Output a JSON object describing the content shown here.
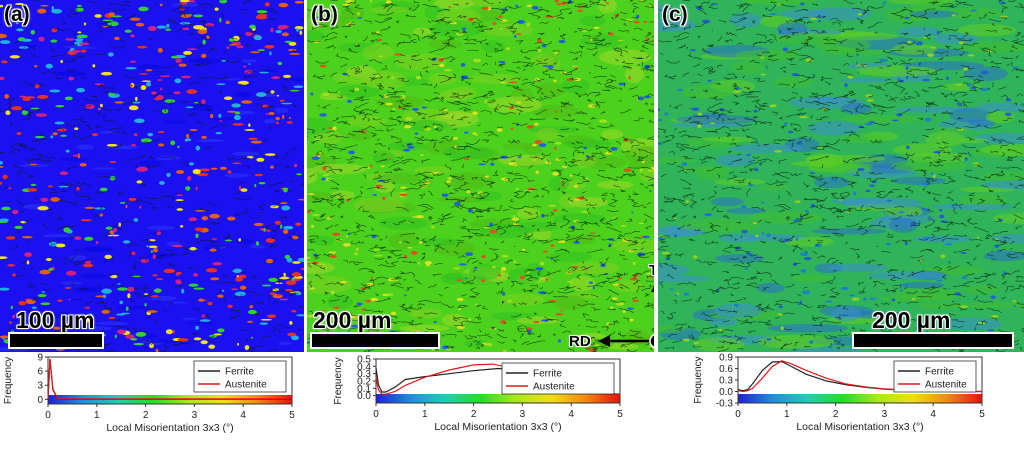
{
  "panels": [
    {
      "tag": "(a)",
      "scale_label": "100 µm",
      "base_color": "#1a10f0"
    },
    {
      "tag": "(b)",
      "scale_label": "200 µm",
      "base_color": "#4cd21c"
    },
    {
      "tag": "(c)",
      "scale_label": "200 µm",
      "base_color": "#2fb45a"
    }
  ],
  "axes_indicator": {
    "td": "TD",
    "rd": "RD",
    "nd": "ND"
  },
  "colorbar": [
    "#1f1fd6",
    "#1e8fe0",
    "#1fd0b0",
    "#20e020",
    "#a8e81a",
    "#f0e010",
    "#f28a10",
    "#e81010"
  ],
  "chart_data": [
    {
      "type": "line",
      "title": "",
      "xlabel": "Local Misorientation 3x3 (°)",
      "ylabel": "Frequency",
      "xlim": [
        0,
        5
      ],
      "ylim": [
        -1,
        9
      ],
      "xticks": [
        0,
        1,
        2,
        3,
        4,
        5
      ],
      "yticks": [
        0,
        3,
        6,
        9
      ],
      "yticklabels": [
        "0",
        "3",
        "6",
        "9"
      ],
      "legend": "top-right",
      "series": [
        {
          "name": "Ferrite",
          "color": "#222222",
          "x": [
            0.0,
            0.04,
            0.1,
            0.2,
            0.5,
            1,
            2,
            3,
            4,
            5
          ],
          "y": [
            0,
            8.6,
            2.0,
            0.05,
            0.05,
            0.05,
            0.05,
            0.05,
            0.05,
            0.05
          ]
        },
        {
          "name": "Austenite",
          "color": "#e01818",
          "x": [
            0.0,
            0.04,
            0.1,
            0.2,
            0.5,
            1,
            2,
            3,
            4,
            5
          ],
          "y": [
            0,
            8.5,
            2.2,
            0.1,
            0.1,
            0.1,
            0.1,
            0.1,
            0.1,
            0.1
          ]
        }
      ]
    },
    {
      "type": "line",
      "title": "",
      "xlabel": "Local Misorientation 3x3 (°)",
      "ylabel": "Frequency",
      "xlim": [
        0,
        5
      ],
      "ylim": [
        -0.1,
        0.5
      ],
      "xticks": [
        0,
        1,
        2,
        3,
        4,
        5
      ],
      "yticks": [
        0.0,
        0.1,
        0.2,
        0.3,
        0.4,
        0.5
      ],
      "yticklabels": [
        "0.0",
        "0.1",
        "0.2",
        "0.3",
        "0.4",
        "0.5"
      ],
      "legend": "top-right",
      "series": [
        {
          "name": "Ferrite",
          "color": "#222222",
          "x": [
            0,
            0.05,
            0.12,
            0.2,
            0.4,
            0.6,
            1.0,
            1.5,
            2.0,
            2.5,
            2.8,
            3.0,
            3.5,
            4.0,
            4.5,
            5.0
          ],
          "y": [
            0.38,
            0.15,
            0.05,
            0.05,
            0.12,
            0.22,
            0.26,
            0.3,
            0.34,
            0.37,
            0.36,
            0.33,
            0.2,
            0.09,
            0.04,
            0.02
          ]
        },
        {
          "name": "Austenite",
          "color": "#e01818",
          "x": [
            0,
            0.05,
            0.12,
            0.2,
            0.4,
            0.6,
            1.0,
            1.5,
            2.0,
            2.4,
            2.8,
            3.0,
            3.5,
            4.0,
            4.5,
            5.0
          ],
          "y": [
            0.25,
            0.08,
            0.02,
            0.02,
            0.06,
            0.14,
            0.25,
            0.35,
            0.42,
            0.43,
            0.37,
            0.3,
            0.16,
            0.07,
            0.03,
            0.01
          ]
        }
      ]
    },
    {
      "type": "line",
      "title": "",
      "xlabel": "Local Misorientation 3x3 (°)",
      "ylabel": "Frequency",
      "xlim": [
        0,
        5
      ],
      "ylim": [
        -0.3,
        0.9
      ],
      "xticks": [
        0,
        1,
        2,
        3,
        4,
        5
      ],
      "yticks": [
        -0.3,
        0.0,
        0.3,
        0.6,
        0.9
      ],
      "yticklabels": [
        "-0.3",
        "0.0",
        "0.3",
        "0.6",
        "0.9"
      ],
      "legend": "top-right",
      "series": [
        {
          "name": "Ferrite",
          "color": "#222222",
          "x": [
            0,
            0.1,
            0.2,
            0.3,
            0.5,
            0.7,
            0.9,
            1.1,
            1.4,
            1.8,
            2.2,
            2.6,
            3.0,
            3.5,
            4.0,
            4.5,
            5.0
          ],
          "y": [
            0.05,
            0.02,
            0.05,
            0.2,
            0.55,
            0.77,
            0.78,
            0.65,
            0.45,
            0.28,
            0.18,
            0.11,
            0.06,
            0.03,
            0.01,
            0.0,
            0.0
          ]
        },
        {
          "name": "Austenite",
          "color": "#e01818",
          "x": [
            0,
            0.1,
            0.2,
            0.3,
            0.5,
            0.7,
            0.9,
            1.1,
            1.4,
            1.8,
            2.2,
            2.6,
            3.0,
            3.5,
            4.0,
            4.5,
            5.0
          ],
          "y": [
            0.02,
            0.0,
            0.02,
            0.08,
            0.35,
            0.65,
            0.8,
            0.72,
            0.55,
            0.35,
            0.2,
            0.12,
            0.07,
            0.03,
            0.01,
            0.0,
            0.0
          ]
        }
      ]
    }
  ]
}
